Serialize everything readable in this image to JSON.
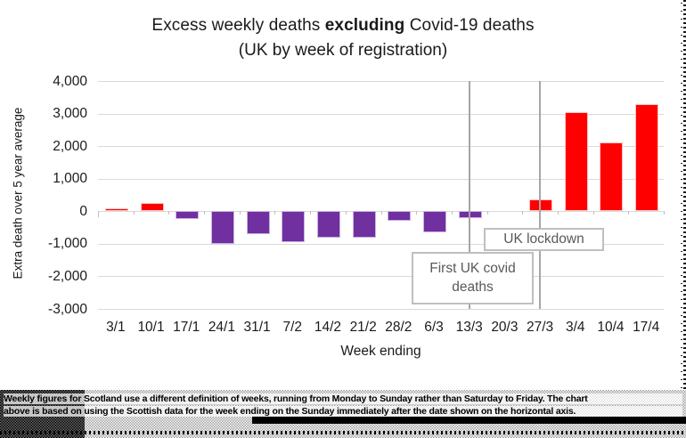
{
  "page": {
    "background": "#ffffff"
  },
  "chart_data": {
    "type": "bar",
    "title": "Excess weekly deaths excluding Covid-19 deaths",
    "title_parts": {
      "prefix": "Excess weekly deaths ",
      "bold": "excluding",
      "suffix": " Covid-19 deaths"
    },
    "subtitle": "(UK by week of registration)",
    "xlabel": "Week ending",
    "ylabel": "Extra death over 5 year average",
    "categories": [
      "3/1",
      "10/1",
      "17/1",
      "24/1",
      "31/1",
      "7/2",
      "14/2",
      "21/2",
      "28/2",
      "6/3",
      "13/3",
      "20/3",
      "27/3",
      "3/4",
      "10/4",
      "17/4"
    ],
    "values": [
      100,
      250,
      -250,
      -1000,
      -700,
      -950,
      -800,
      -800,
      -300,
      -650,
      -200,
      0,
      350,
      3050,
      2100,
      3300
    ],
    "ylim": [
      -3000,
      4000
    ],
    "yticks": [
      {
        "value": 4000,
        "label": "4,000"
      },
      {
        "value": 3000,
        "label": "3,000"
      },
      {
        "value": 2000,
        "label": "2,000"
      },
      {
        "value": 1000,
        "label": "1,000"
      },
      {
        "value": 0,
        "label": "0"
      },
      {
        "value": -1000,
        "label": "-1,000"
      },
      {
        "value": -2000,
        "label": "-2,000"
      },
      {
        "value": -3000,
        "label": "-3,000"
      }
    ],
    "grid": true,
    "legend_position": "none",
    "colors": {
      "positive_bar": "#ff0000",
      "negative_bar": "#7030a0",
      "gridline": "#d9d9d9",
      "annotation_line": "#a6a6a6",
      "annotation_text": "#595959",
      "annotation_border": "#bfbfbf"
    },
    "annotations": [
      {
        "id": "first-uk-covid-deaths",
        "label": "First UK covid deaths",
        "label_lines": [
          "First UK covid",
          "deaths"
        ],
        "category": "13/3"
      },
      {
        "id": "uk-lockdown",
        "label": "UK lockdown",
        "label_lines": [
          "UK lockdown"
        ],
        "category": "27/3"
      }
    ]
  },
  "footnote": {
    "line1": "Weekly figures for Scotland use a different definition of weeks, running from Monday to Sunday rather than Saturday to Friday. The chart",
    "line2": "above is based on using the Scottish data for the week ending on the Sunday immediately after the date shown on the horizontal axis."
  }
}
